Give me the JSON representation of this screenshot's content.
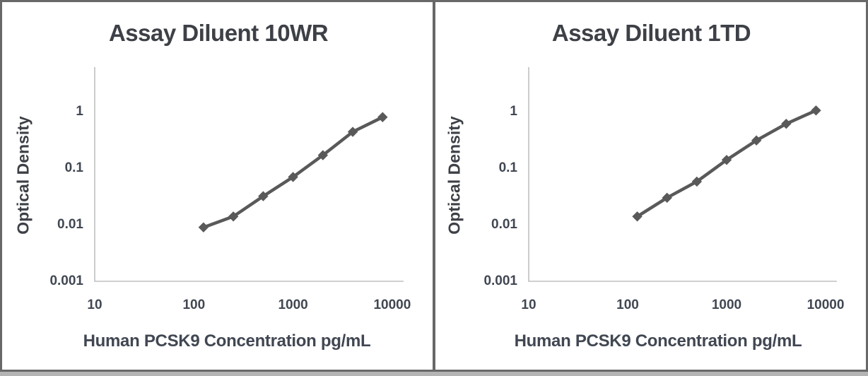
{
  "figure": {
    "description": "Two side-by-side standard-curve plots comparing assay diluents",
    "colors": {
      "series": "#595959",
      "axis_line": "#bfbfbf",
      "title_text": "#3d4046",
      "tick_text": "#414752",
      "frame": "#686868",
      "bottom_strip": "#b4b4b4",
      "background": "#ffffff"
    }
  },
  "chart_data": [
    {
      "type": "line",
      "title": "Assay Diluent 10WR",
      "xlabel": "Human PCSK9 Concentration pg/mL",
      "ylabel": "Optical Density",
      "x_scale": "log",
      "y_scale": "log",
      "x_ticks": [
        "10",
        "100",
        "1000",
        "10000"
      ],
      "y_ticks": [
        "1",
        "0.1",
        "0.01",
        "0.001"
      ],
      "xlim": [
        10,
        13000
      ],
      "ylim": [
        0.001,
        6
      ],
      "grid": false,
      "legend": false,
      "marker": "diamond",
      "series": [
        {
          "name": "Standard curve",
          "x": [
            125,
            250,
            500,
            1000,
            2000,
            4000,
            8000
          ],
          "y": [
            0.009,
            0.014,
            0.032,
            0.07,
            0.17,
            0.44,
            0.8
          ]
        }
      ]
    },
    {
      "type": "line",
      "title": "Assay Diluent 1TD",
      "xlabel": "Human PCSK9 Concentration pg/mL",
      "ylabel": "Optical Density",
      "x_scale": "log",
      "y_scale": "log",
      "x_ticks": [
        "10",
        "100",
        "1000",
        "10000"
      ],
      "y_ticks": [
        "1",
        "0.1",
        "0.01",
        "0.001"
      ],
      "xlim": [
        10,
        13000
      ],
      "ylim": [
        0.001,
        6
      ],
      "grid": false,
      "legend": false,
      "marker": "diamond",
      "series": [
        {
          "name": "Standard curve",
          "x": [
            125,
            250,
            500,
            1000,
            2000,
            4000,
            8000
          ],
          "y": [
            0.014,
            0.03,
            0.058,
            0.14,
            0.31,
            0.61,
            1.05
          ]
        }
      ]
    }
  ]
}
